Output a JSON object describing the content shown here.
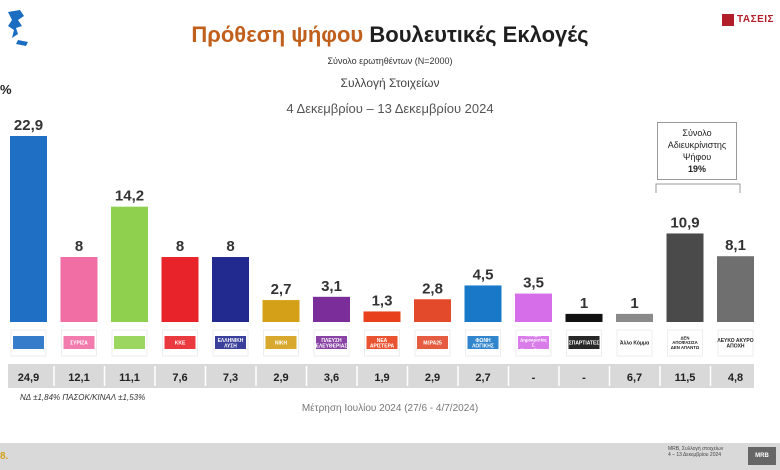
{
  "header": {
    "title_part1": "Πρόθεση ψήφου",
    "title_part2": "Βουλευτικές Εκλογές",
    "subtitle": "Σύνολο ερωτηθέντων (Ν=2000)",
    "collection": "Συλλογή Στοιχείων",
    "period": "4 Δεκεμβρίου – 13 Δεκεμβρίου 2024",
    "pct_sign": "%",
    "brand": "ΤΑΣΕΙΣ"
  },
  "undecided": {
    "line1": "Σύνολο",
    "line2": "Αδιευκρίνιστης",
    "line3": "Ψήφου",
    "value": "19%"
  },
  "footnote": "ΝΔ ±1,84% ΠΑΣΟΚ/ΚΙΝΑΛ ±1,53%",
  "prev_label": "Μέτρηση Ιουλίου 2024 (27/6 - 4/7/2024)",
  "footer": {
    "left": "8.",
    "right_line1": "MRB, Συλλογή στοιχείων",
    "right_line2": "4 – 13 Δεκεμβρίου 2024",
    "logo": "MRB"
  },
  "chart_data": {
    "type": "bar",
    "categories": [
      "ΝΔ",
      "ΣΥΡΙΖΑ",
      "ΠΑΣΟΚ",
      "ΚΚΕ",
      "ΕΛΛΗΝΙΚΗ ΛΥΣΗ",
      "ΝΙΚΗ",
      "ΠΛΕΥΣΗ ΕΛΕΥΘΕΡΙΑΣ",
      "ΝΕΑ ΑΡΙΣΤΕΡΑ",
      "ΜέΡΑ25",
      "ΦΩΝΗ ΛΟΓΙΚΗΣ",
      "Κίνημα Δημοκρατίας Σ. Κασσελάκης",
      "ΣΠΑΡΤΙΑΤΕΣ",
      "Άλλο Κόμμα",
      "ΔΕΝ ΑΠΟΦΑΣΙΣΑ ΔΕΝ ΑΠΑΝΤΩ",
      "ΛΕΥΚΟ ΑΚΥΡΟ ΑΠΟΧΗ"
    ],
    "labels_shown": [
      "",
      "ΣΥΡΙΖΑ",
      "",
      "ΚΚΕ",
      "ΕΛΛΗΝΙΚΗ ΛΥΣΗ",
      "ΝΙΚΗ",
      "ΠΛΕΥΣΗ ΕΛΕΥΘΕΡΙΑΣ",
      "ΝΕΑ ΑΡΙΣΤΕΡΑ",
      "ΜέΡΑ25",
      "ΦΩΝΗ ΛΟΓΙΚΗΣ",
      "Κίνημα Δημοκρατίας Σ. Κασσελάκης",
      "ΣΠΑΡΤΙΑΤΕΣ",
      "Άλλο Κόμμα",
      "ΔΕΝ ΑΠΟΦΑΣΙΣΑ ΔΕΝ ΑΠΑΝΤΩ",
      "ΛΕΥΚΟ ΑΚΥΡΟ ΑΠΟΧΗ"
    ],
    "values": [
      22.9,
      8,
      14.2,
      8,
      8,
      2.7,
      3.1,
      1.3,
      2.8,
      4.5,
      3.5,
      1,
      1,
      10.9,
      8.1
    ],
    "value_labels": [
      "22,9",
      "8",
      "14,2",
      "8",
      "8",
      "2,7",
      "3,1",
      "1,3",
      "2,8",
      "4,5",
      "3,5",
      "1",
      "1",
      "10,9",
      "8,1"
    ],
    "previous": [
      "24,9",
      "12,1",
      "11,1",
      "7,6",
      "7,3",
      "2,9",
      "3,6",
      "1,9",
      "2,9",
      "2,7",
      "-",
      "-",
      "6,7",
      "11,5",
      "4,8"
    ],
    "colors": [
      "#1f6fc4",
      "#f06ea4",
      "#8fd14f",
      "#e8232a",
      "#232a8f",
      "#d4a017",
      "#7b2d9a",
      "#e8401c",
      "#e24a2b",
      "#1a78c8",
      "#d56ee8",
      "#111111",
      "#8a8a8a",
      "#4a4a4a",
      "#6f6f6f"
    ],
    "ylim": [
      0,
      25
    ],
    "grid": false,
    "legend": "none"
  }
}
